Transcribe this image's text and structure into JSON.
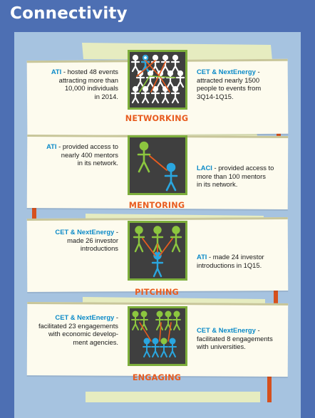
{
  "title": "Connectivity",
  "colors": {
    "background": "#4d6fb3",
    "panel": "#a6c3e0",
    "card": "#fdfbee",
    "accent_orange": "#e85c1f",
    "accent_blue": "#0b8ac8",
    "icon_border_green": "#7dae3c",
    "figure_green": "#8cc63f",
    "figure_blue": "#2aa6df"
  },
  "sections": [
    {
      "label": "NETWORKING",
      "icon": "crowd-network-icon",
      "left": {
        "org": "ATI",
        "text_lines": [
          " - hosted 48 events",
          "attracting more than",
          "10,000 individuals",
          "in 2014."
        ]
      },
      "right": {
        "org": "CET & NextEnergy",
        "text_lines": [
          " -",
          "attracted nearly 1500",
          "people to events from",
          "3Q14-1Q15."
        ]
      }
    },
    {
      "label": "MENTORING",
      "icon": "mentor-pair-icon",
      "left": {
        "org": "ATI",
        "text_lines": [
          " - provided access to",
          "nearly 400 mentors",
          "in its network."
        ]
      },
      "right": {
        "org": "LACI",
        "text_lines": [
          " - provided access to",
          "more than 100 mentors",
          "in its network."
        ]
      }
    },
    {
      "label": "PITCHING",
      "icon": "investor-pitch-icon",
      "left": {
        "org": "CET & NextEnergy",
        "text_lines": [
          " -",
          "made 26 investor",
          "introductions"
        ]
      },
      "right": {
        "org": "ATI",
        "text_lines": [
          " - made 24 investor",
          "introductions in 1Q15."
        ]
      }
    },
    {
      "label": "ENGAGING",
      "icon": "engagement-groups-icon",
      "left": {
        "org": "CET & NextEnergy",
        "text_lines": [
          " -",
          "facilitated 23 engagements",
          "with economic develop-",
          "ment agencies."
        ]
      },
      "right": {
        "org": "CET & NextEnergy",
        "text_lines": [
          " -",
          "facilitated 8 engagements",
          "with universities."
        ]
      }
    }
  ]
}
